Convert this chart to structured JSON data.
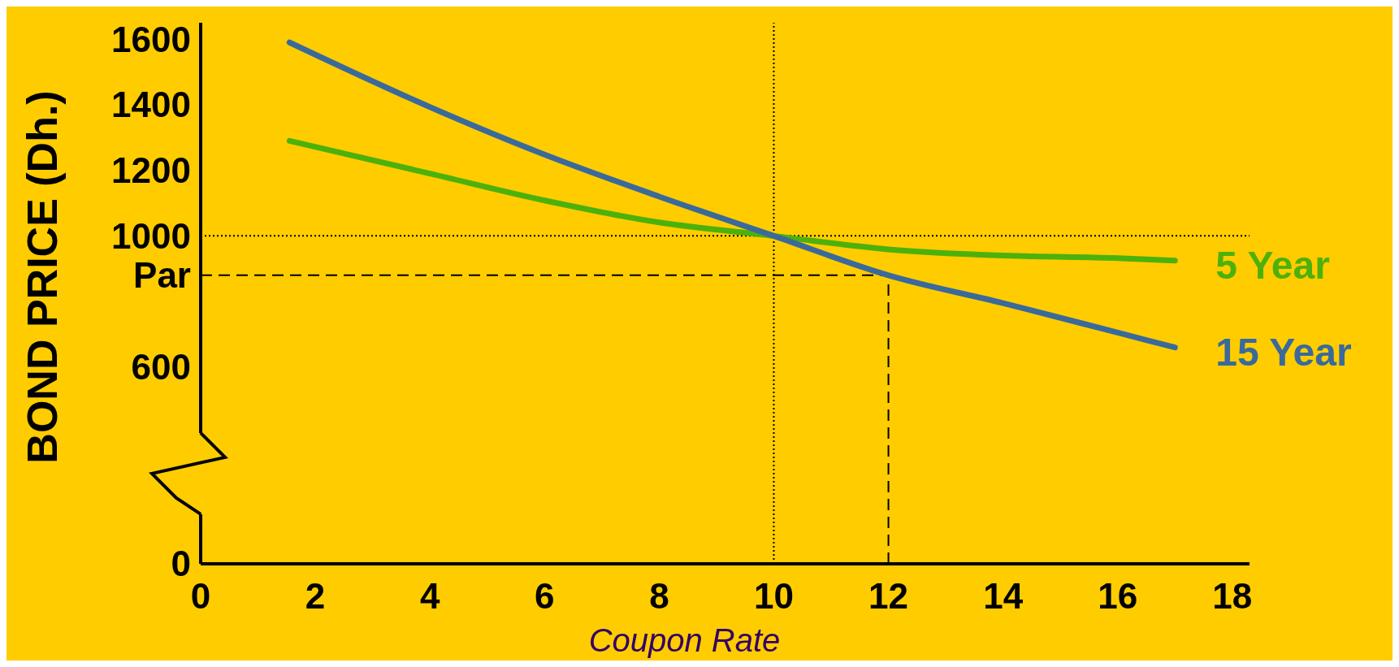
{
  "chart_data": {
    "type": "line",
    "xlabel": "Coupon Rate",
    "ylabel": "BOND PRICE (Dh.)",
    "xlim": [
      0,
      18.3
    ],
    "xticks": [
      0,
      2,
      4,
      6,
      8,
      10,
      12,
      14,
      16,
      18
    ],
    "ylim": [
      0,
      1650
    ],
    "yticks": [
      0,
      600,
      {
        "value": 880,
        "label": "Par"
      },
      1000,
      1200,
      1400,
      1600
    ],
    "grid": false,
    "legend": false,
    "marker": "none",
    "line_style": "solid",
    "series": [
      {
        "name": "5 Year",
        "color": "#4cb10a",
        "x": [
          1.55,
          4,
          6,
          8,
          10,
          12,
          14,
          16,
          17
        ],
        "values": [
          1290,
          1190,
          1108,
          1041,
          1000,
          959,
          940,
          932,
          925
        ]
      },
      {
        "name": "15 Year",
        "color": "#3a6a9a",
        "x": [
          1.55,
          4,
          6,
          8,
          10,
          12,
          14,
          16,
          17
        ],
        "values": [
          1590,
          1393,
          1248,
          1120,
          1000,
          880,
          795,
          705,
          660
        ]
      }
    ],
    "ref_lines": [
      {
        "axis": "y",
        "value": 1000,
        "line_style": "dotted",
        "color": "#000000"
      },
      {
        "axis": "x",
        "value": 10,
        "line_style": "dotted",
        "color": "#000000"
      },
      {
        "axis": "y",
        "value": 880,
        "line_style": "dashed",
        "color": "#000000"
      },
      {
        "axis": "x",
        "value": 12,
        "line_style": "dashed",
        "color": "#000000"
      }
    ]
  }
}
